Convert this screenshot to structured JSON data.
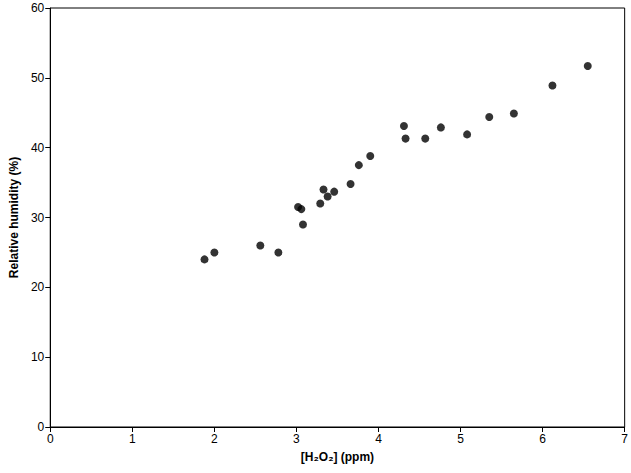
{
  "chart_data": {
    "type": "scatter",
    "x_label": "[H₂O₂] (ppm)",
    "y_label": "Relative humidity (%)",
    "x": [
      1.88,
      2.0,
      2.56,
      2.78,
      3.02,
      3.06,
      3.08,
      3.29,
      3.33,
      3.38,
      3.46,
      3.66,
      3.76,
      3.9,
      4.31,
      4.33,
      4.57,
      4.76,
      5.08,
      5.35,
      5.65,
      6.12,
      6.55
    ],
    "values": [
      24.0,
      25.0,
      26.0,
      25.0,
      31.5,
      31.2,
      29.0,
      32.0,
      34.0,
      33.0,
      33.7,
      34.8,
      37.5,
      38.8,
      43.1,
      41.3,
      41.3,
      42.9,
      41.9,
      44.4,
      44.9,
      48.9,
      51.7
    ],
    "color": "#000000",
    "marker": "circle",
    "xlim": [
      0,
      7
    ],
    "xticks": [
      0,
      1,
      2,
      3,
      4,
      5,
      6,
      7
    ],
    "ylim": [
      0,
      60
    ],
    "yticks": [
      0,
      10,
      20,
      30,
      40,
      50,
      60
    ],
    "grid": false
  }
}
